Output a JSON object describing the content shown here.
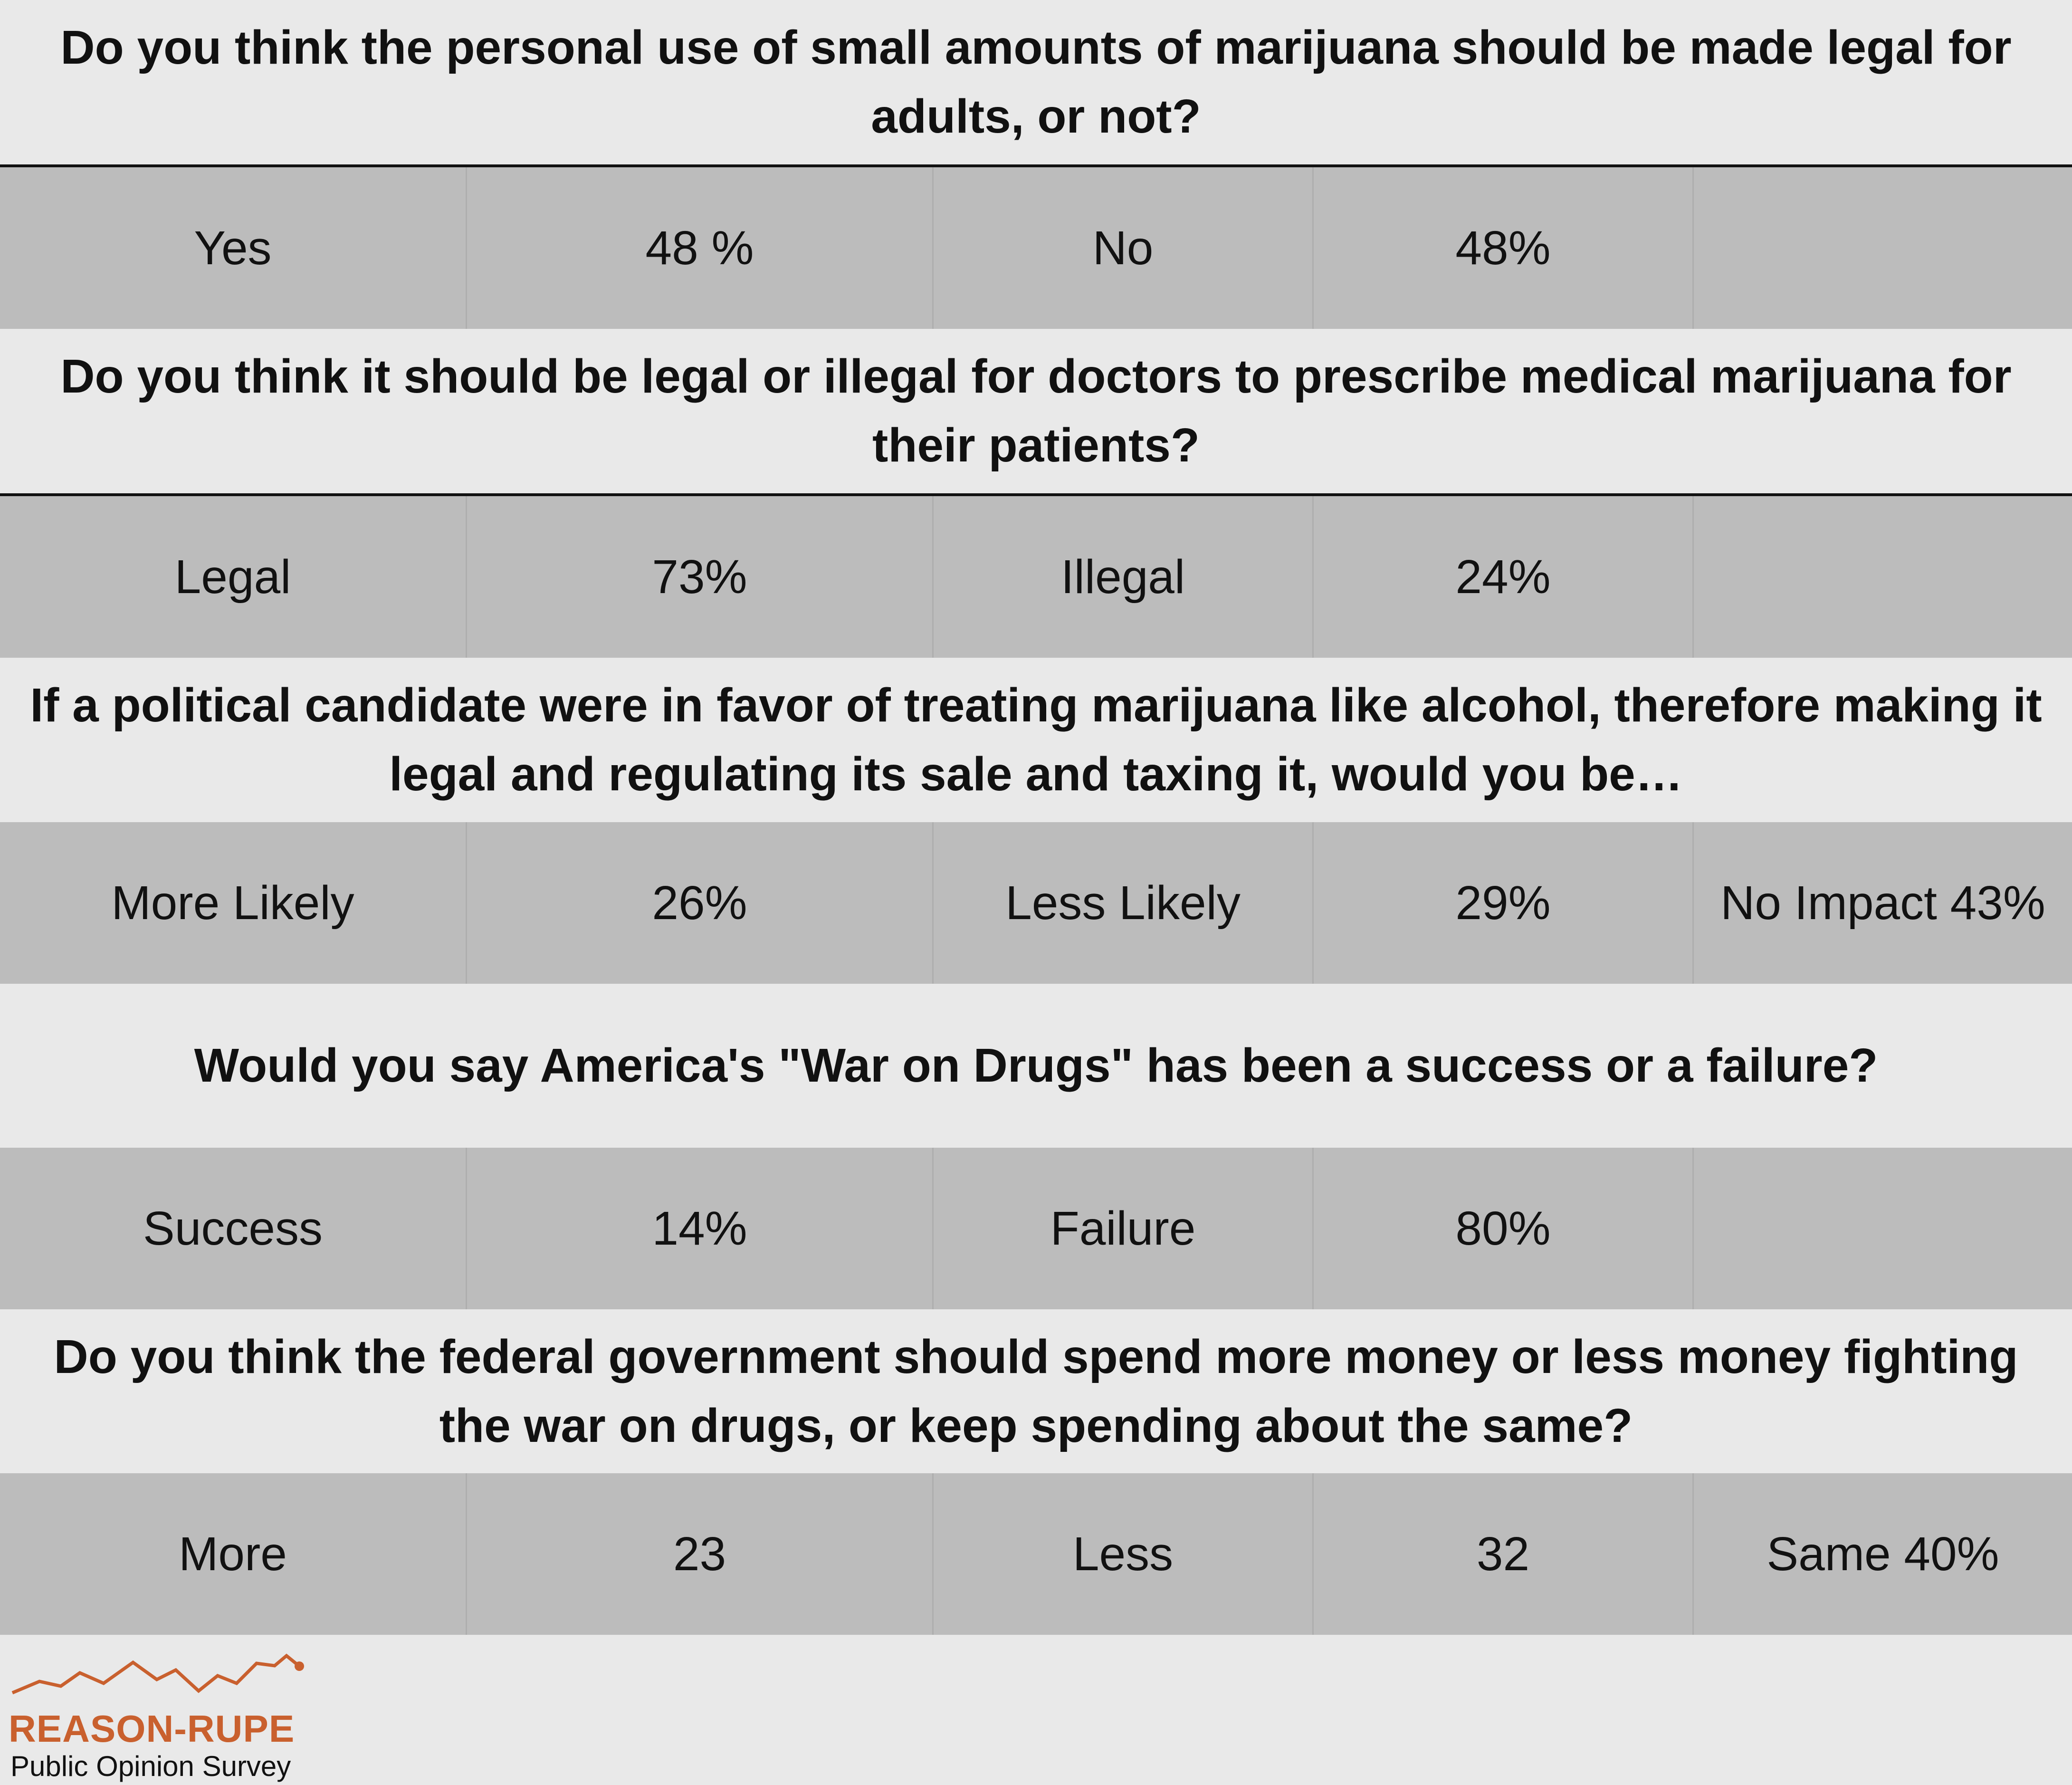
{
  "q1": {
    "question": "Do you think the personal use of small amounts of marijuana should be made legal for adults, or not?",
    "cells": [
      "Yes",
      "48 %",
      "No",
      "48%",
      ""
    ]
  },
  "q2": {
    "question": "Do you think it should be legal or illegal for doctors to prescribe medical marijuana for their patients?",
    "cells": [
      "Legal",
      "73%",
      "Illegal",
      "24%",
      ""
    ]
  },
  "q3": {
    "question": "If a political candidate were in favor of treating marijuana like alcohol, therefore making it legal and regulating its sale and taxing it, would you be…",
    "cells": [
      "More Likely",
      "26%",
      "Less Likely",
      "29%",
      "No Impact 43%"
    ]
  },
  "q4": {
    "question": "Would you say America's \"War on Drugs\" has been a success or a failure?",
    "cells": [
      "Success",
      "14%",
      "Failure",
      "80%",
      ""
    ]
  },
  "q5": {
    "question": "Do you think the federal government should spend more money or less money fighting the war on drugs, or keep spending about the same?",
    "cells": [
      "More",
      "23",
      "Less",
      "32",
      "Same 40%"
    ]
  },
  "logo": {
    "name": "REASON-RUPE",
    "subtitle": "Public Opinion Survey",
    "icon": "trend-line-icon",
    "color": "#c9602e"
  }
}
